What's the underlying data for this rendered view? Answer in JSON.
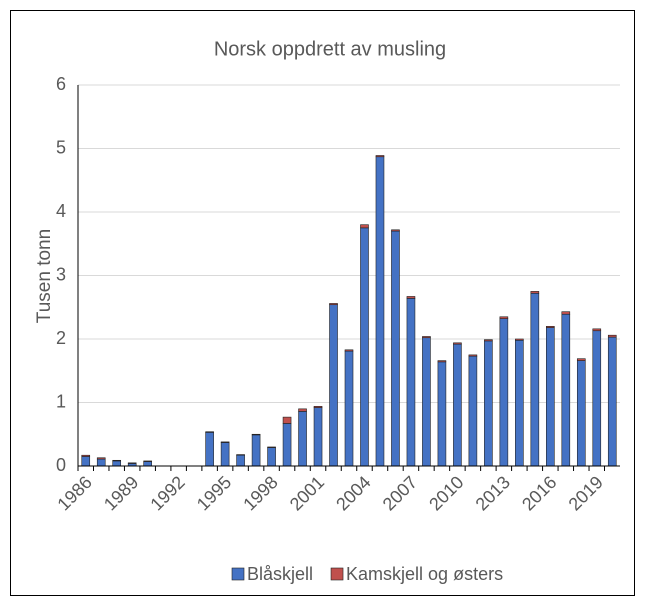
{
  "chart_data": {
    "type": "stacked_bar",
    "title": "Norsk oppdrett av musling",
    "y_label": "Tusen tonn",
    "categories": [
      "1986",
      null,
      null,
      "1989",
      null,
      null,
      "1992",
      null,
      null,
      "1995",
      null,
      null,
      "1998",
      null,
      null,
      "2001",
      null,
      null,
      "2004",
      null,
      null,
      "2007",
      null,
      null,
      "2010",
      null,
      null,
      "2013",
      null,
      null,
      "2016",
      null,
      null,
      "2019",
      null
    ],
    "series": [
      {
        "name": "Blåskjell",
        "color": "#4472c4",
        "values": [
          0.15,
          0.11,
          0.08,
          0.04,
          0.07,
          0,
          0,
          0,
          0.53,
          0.37,
          0.17,
          0.49,
          0.29,
          0.67,
          0.86,
          0.92,
          2.54,
          1.81,
          3.75,
          4.87,
          3.7,
          2.64,
          2.02,
          1.64,
          1.92,
          1.73,
          1.97,
          2.32,
          1.98,
          2.72,
          2.18,
          2.39,
          1.66,
          2.13,
          2.03
        ]
      },
      {
        "name": "Kamskjell og østers",
        "color": "#c0504d",
        "values": [
          0.02,
          0.02,
          0.01,
          0.01,
          0.01,
          0,
          0,
          0,
          0.01,
          0.01,
          0.01,
          0.01,
          0.01,
          0.1,
          0.04,
          0.02,
          0.02,
          0.02,
          0.05,
          0.02,
          0.02,
          0.03,
          0.02,
          0.02,
          0.02,
          0.02,
          0.02,
          0.03,
          0.02,
          0.03,
          0.02,
          0.04,
          0.03,
          0.03,
          0.03
        ]
      }
    ],
    "ylim": [
      0,
      6
    ],
    "yticks": [
      0,
      1,
      2,
      3,
      4,
      5,
      6
    ],
    "grid": true
  }
}
